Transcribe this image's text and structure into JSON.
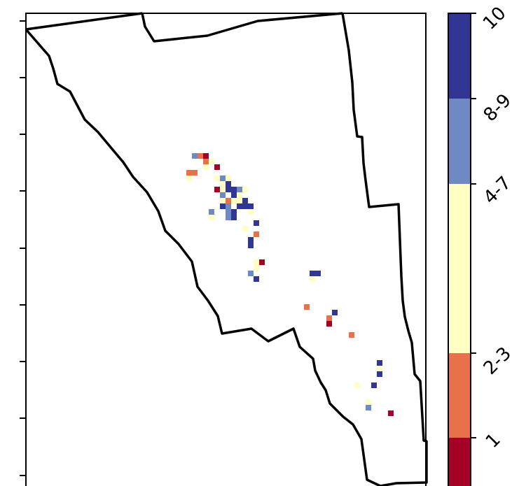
{
  "map": {
    "colors": {
      "c1": "#a50026",
      "c2_3": "#e8704a",
      "c4_7": "#ffffc4",
      "c8_9": "#6f89c4",
      "c10": "#313695",
      "boundary": "#000000",
      "frame": "#000000"
    },
    "cells": [
      {
        "cls": "c8_9"
      },
      {
        "cls": "c2_3"
      },
      {
        "cls": "c1"
      },
      {
        "cls": "c4_7"
      },
      {
        "cls": "c2_3"
      },
      {
        "cls": "c4_7"
      },
      {
        "cls": "c1"
      },
      {
        "cls": "c2_3"
      },
      {
        "cls": "c2_3"
      },
      {
        "cls": "c4_7"
      },
      {
        "cls": "c4_7"
      },
      {
        "cls": "c8_9"
      },
      {
        "cls": "c4_7"
      },
      {
        "cls": "c4_7"
      },
      {
        "cls": "c10"
      },
      {
        "cls": "c4_7"
      },
      {
        "cls": "c1"
      },
      {
        "cls": "c4_7"
      },
      {
        "cls": "c10"
      },
      {
        "cls": "c10"
      },
      {
        "cls": "c8_9"
      },
      {
        "cls": "c4_7"
      },
      {
        "cls": "c8_9"
      },
      {
        "cls": "c10"
      },
      {
        "cls": "c4_7"
      },
      {
        "cls": "c4_7"
      },
      {
        "cls": "c2_3"
      },
      {
        "cls": "c4_7"
      },
      {
        "cls": "c4_7"
      },
      {
        "cls": "c10"
      },
      {
        "cls": "c10"
      },
      {
        "cls": "c8_9"
      },
      {
        "cls": "c10"
      },
      {
        "cls": "c10"
      },
      {
        "cls": "c10"
      },
      {
        "cls": "c8_9"
      },
      {
        "cls": "c8_9"
      },
      {
        "cls": "c10"
      },
      {
        "cls": "c4_7"
      },
      {
        "cls": "c4_7"
      },
      {
        "cls": "c8_9"
      },
      {
        "cls": "c10"
      },
      {
        "cls": "c10"
      },
      {
        "cls": "c4_7"
      },
      {
        "cls": "c2_3"
      },
      {
        "cls": "c10"
      },
      {
        "cls": "c10"
      },
      {
        "cls": "c4_7"
      },
      {
        "cls": "c1"
      },
      {
        "cls": "c4_7"
      },
      {
        "cls": "c8_9"
      },
      {
        "cls": "c10"
      },
      {
        "cls": "c10"
      },
      {
        "cls": "c10"
      },
      {
        "cls": "c4_7"
      },
      {
        "cls": "c2_3"
      },
      {
        "cls": "c10"
      },
      {
        "cls": "c2_3"
      },
      {
        "cls": "c1"
      },
      {
        "cls": "c2_3"
      },
      {
        "cls": "c10"
      },
      {
        "cls": "c4_7"
      },
      {
        "cls": "c10"
      },
      {
        "cls": "c4_7"
      },
      {
        "cls": "c10"
      },
      {
        "cls": "c4_7"
      },
      {
        "cls": "c4_7"
      },
      {
        "cls": "c8_9"
      },
      {
        "cls": "c1"
      }
    ]
  },
  "legend": {
    "labels": [
      "10",
      "8-9",
      "4-7",
      "2-3",
      "1"
    ],
    "classes": [
      "c10",
      "c8_9",
      "c4_7",
      "c2_3",
      "c1"
    ]
  }
}
